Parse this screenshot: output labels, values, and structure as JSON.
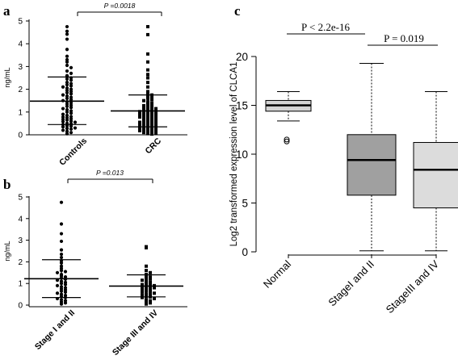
{
  "chart_data": [
    {
      "panel": "a",
      "type": "scatter",
      "ylabel": "ng/mL",
      "ylim": [
        0,
        5
      ],
      "yticks": [
        "0",
        "1",
        "2",
        "3",
        "4",
        "5"
      ],
      "categories": [
        "Controls",
        "CRC"
      ],
      "summary": [
        {
          "category": "Controls",
          "mean": 1.48,
          "sd_low": 0.45,
          "sd_high": 2.54
        },
        {
          "category": "CRC",
          "mean": 1.05,
          "sd_low": 0.35,
          "sd_high": 1.75
        }
      ],
      "series": [
        {
          "category": "Controls",
          "marker": "circle",
          "values": [
            4.75,
            4.55,
            4.42,
            4.2,
            3.75,
            3.45,
            3.3,
            3.2,
            3.05,
            2.95,
            2.8,
            2.7,
            2.6,
            2.55,
            2.5,
            2.45,
            2.4,
            2.3,
            2.25,
            2.2,
            2.15,
            2.1,
            2.05,
            2.0,
            1.95,
            1.9,
            1.85,
            1.8,
            1.75,
            1.7,
            1.65,
            1.6,
            1.55,
            1.5,
            1.45,
            1.4,
            1.35,
            1.3,
            1.25,
            1.2,
            1.15,
            1.1,
            1.05,
            1.0,
            0.95,
            0.9,
            0.85,
            0.8,
            0.78,
            0.75,
            0.7,
            0.68,
            0.65,
            0.6,
            0.58,
            0.55,
            0.5,
            0.48,
            0.45,
            0.4,
            0.38,
            0.35,
            0.3,
            0.28,
            0.25,
            0.2,
            0.15,
            0.1,
            0.05
          ]
        },
        {
          "category": "CRC",
          "marker": "square",
          "values": [
            4.75,
            4.4,
            3.55,
            3.2,
            2.85,
            2.65,
            2.5,
            2.3,
            2.1,
            1.9,
            1.8,
            1.75,
            1.7,
            1.65,
            1.6,
            1.55,
            1.5,
            1.45,
            1.4,
            1.35,
            1.3,
            1.28,
            1.25,
            1.2,
            1.18,
            1.15,
            1.12,
            1.1,
            1.08,
            1.05,
            1.02,
            1.0,
            0.98,
            0.95,
            0.92,
            0.9,
            0.88,
            0.85,
            0.82,
            0.8,
            0.78,
            0.75,
            0.72,
            0.7,
            0.68,
            0.65,
            0.62,
            0.6,
            0.58,
            0.55,
            0.52,
            0.5,
            0.48,
            0.45,
            0.42,
            0.4,
            0.38,
            0.35,
            0.32,
            0.3,
            0.28,
            0.25,
            0.22,
            0.2,
            0.18,
            0.15,
            0.12,
            0.1,
            0.08,
            0.05,
            0.03
          ]
        }
      ],
      "annotation": "P =0.0018"
    },
    {
      "panel": "b",
      "type": "scatter",
      "ylabel": "ng/mL",
      "ylim": [
        0,
        5
      ],
      "yticks": [
        "0",
        "1",
        "2",
        "3",
        "4",
        "5"
      ],
      "categories": [
        "Stage I and II",
        "Stage III and IV"
      ],
      "summary": [
        {
          "category": "Stage I and II",
          "mean": 1.22,
          "sd_low": 0.35,
          "sd_high": 2.1
        },
        {
          "category": "Stage III and IV",
          "mean": 0.88,
          "sd_low": 0.38,
          "sd_high": 1.4
        }
      ],
      "series": [
        {
          "category": "Stage I and II",
          "marker": "circle",
          "values": [
            4.75,
            3.75,
            3.3,
            2.95,
            2.55,
            2.35,
            2.2,
            2.05,
            1.95,
            1.8,
            1.7,
            1.6,
            1.55,
            1.5,
            1.42,
            1.35,
            1.3,
            1.25,
            1.2,
            1.15,
            1.1,
            1.05,
            1.0,
            0.95,
            0.9,
            0.85,
            0.8,
            0.75,
            0.7,
            0.65,
            0.6,
            0.55,
            0.5,
            0.45,
            0.4,
            0.35,
            0.3,
            0.25,
            0.2,
            0.15,
            0.1,
            0.05
          ]
        },
        {
          "category": "Stage III and IV",
          "marker": "square",
          "values": [
            2.7,
            2.65,
            1.8,
            1.6,
            1.5,
            1.42,
            1.35,
            1.3,
            1.25,
            1.2,
            1.15,
            1.1,
            1.05,
            1.0,
            0.98,
            0.95,
            0.9,
            0.88,
            0.85,
            0.82,
            0.8,
            0.75,
            0.72,
            0.7,
            0.65,
            0.62,
            0.6,
            0.55,
            0.5,
            0.48,
            0.45,
            0.4,
            0.38,
            0.35,
            0.3,
            0.25,
            0.2,
            0.15,
            0.1,
            0.05
          ]
        }
      ],
      "annotation": "P =0.013"
    },
    {
      "panel": "c",
      "type": "box",
      "ylabel": "Log2 transformed expression level of CLCA1",
      "ylim": [
        0,
        20
      ],
      "yticks": [
        "0",
        "5",
        "10",
        "15",
        "20"
      ],
      "categories": [
        "Normal",
        "StageI and II",
        "StageIII and IV"
      ],
      "boxes": [
        {
          "category": "Normal",
          "min": 13.4,
          "q1": 14.4,
          "median": 15.0,
          "q3": 15.5,
          "max": 16.4,
          "outliers": [
            11.5,
            11.3
          ],
          "color": "#d4d4d4"
        },
        {
          "category": "StageI and II",
          "min": 0.1,
          "q1": 5.8,
          "median": 9.4,
          "q3": 12.0,
          "max": 19.3,
          "outliers": [],
          "color": "#a0a0a0"
        },
        {
          "category": "StageIII and IV",
          "min": 0.1,
          "q1": 4.5,
          "median": 8.4,
          "q3": 11.2,
          "max": 16.4,
          "outliers": [],
          "color": "#dcdcdc"
        }
      ],
      "annotations": [
        "P < 2.2e-16",
        "P = 0.019"
      ]
    }
  ]
}
